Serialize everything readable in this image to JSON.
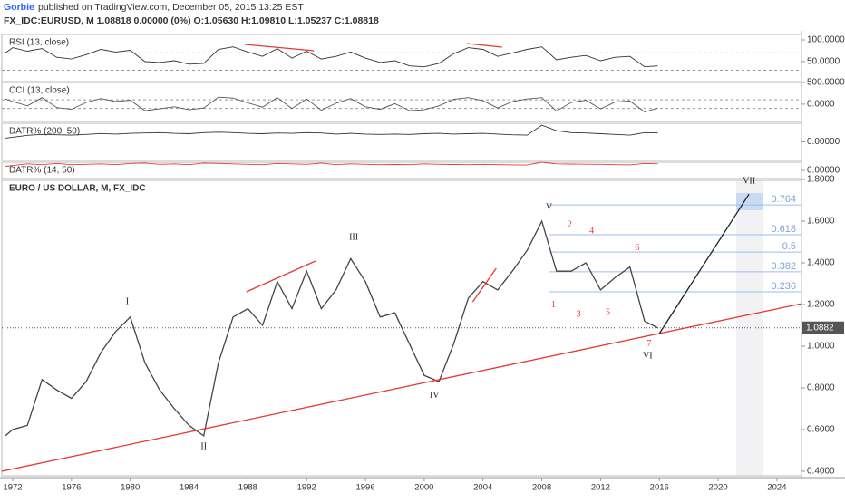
{
  "header": {
    "author": "Gorbie",
    "published": "published on TradingView.com, December 05, 2015 13:25 EST",
    "symbol_line": "FX_IDC:EURUSD, M 1.08818 0.00000 (0%) O:1.05630 H:1.09810 L:1.05237 C:1.08818"
  },
  "chart_data": [
    {
      "type": "line",
      "title": "RSI (13, close)",
      "color": "#333333",
      "x": [
        1971.5,
        1972,
        1973,
        1974,
        1975,
        1976,
        1977,
        1978,
        1979,
        1980,
        1981,
        1982,
        1983,
        1984,
        1985,
        1986,
        1987,
        1988,
        1989,
        1990,
        1991,
        1992,
        1993,
        1994,
        1995,
        1996,
        1997,
        1998,
        1999,
        2000,
        2001,
        2002,
        2003,
        2004,
        2005,
        2006,
        2007,
        2008,
        2009,
        2010,
        2011,
        2012,
        2013,
        2014,
        2015,
        2015.9
      ],
      "values": [
        70,
        82,
        74,
        80,
        60,
        56,
        66,
        78,
        72,
        76,
        50,
        48,
        52,
        44,
        46,
        78,
        84,
        72,
        62,
        80,
        58,
        74,
        56,
        62,
        72,
        58,
        48,
        52,
        40,
        38,
        46,
        68,
        82,
        78,
        62,
        70,
        78,
        84,
        54,
        60,
        64,
        52,
        60,
        62,
        38,
        40
      ],
      "xlim": [
        1971.26,
        2025.67
      ],
      "ylim": [
        4,
        112.5
      ],
      "yticks": [
        {
          "value": 100,
          "label": "100.0000"
        },
        {
          "value": 50,
          "label": "50.0000"
        }
      ],
      "guide_lines": [
        70,
        30
      ],
      "trend_lines": [
        {
          "color": "#e53935",
          "x": [
            1987.8,
            1992.5
          ],
          "y": [
            89.6,
            75
          ]
        },
        {
          "color": "#e53935",
          "x": [
            2002.9,
            2005.3
          ],
          "y": [
            91.7,
            83.3
          ]
        }
      ]
    },
    {
      "type": "line",
      "title": "CCI (13, close)",
      "color": "#555555",
      "x": [
        1971.5,
        1972,
        1973,
        1974,
        1975,
        1976,
        1977,
        1978,
        1979,
        1980,
        1981,
        1982,
        1983,
        1984,
        1985,
        1986,
        1987,
        1988,
        1989,
        1990,
        1991,
        1992,
        1993,
        1994,
        1995,
        1996,
        1997,
        1998,
        1999,
        2000,
        2001,
        2002,
        2003,
        2004,
        2005,
        2006,
        2007,
        2008,
        2009,
        2010,
        2011,
        2012,
        2013,
        2014,
        2015,
        2015.9
      ],
      "values": [
        120,
        60,
        -40,
        150,
        -80,
        -120,
        40,
        130,
        60,
        90,
        -150,
        -110,
        -60,
        -130,
        -90,
        160,
        140,
        30,
        -70,
        150,
        -100,
        120,
        -140,
        20,
        130,
        -60,
        -120,
        10,
        -150,
        -130,
        -40,
        110,
        150,
        80,
        -90,
        60,
        120,
        150,
        -160,
        40,
        90,
        -110,
        50,
        70,
        -180,
        -90
      ],
      "xlim": [
        1971.26,
        2025.67
      ],
      "ylim": [
        -400,
        500
      ],
      "yticks": [
        {
          "value": 500,
          "label": "500.0000"
        },
        {
          "value": 0,
          "label": "0.0000"
        }
      ],
      "guide_lines": [
        100,
        -100
      ]
    },
    {
      "type": "line",
      "title": "DATR% (200, 50)",
      "color": "#333333",
      "x": [
        1971.5,
        1972,
        1973,
        1974,
        1975,
        1976,
        1977,
        1978,
        1979,
        1980,
        1981,
        1982,
        1983,
        1984,
        1985,
        1986,
        1987,
        1988,
        1989,
        1990,
        1991,
        1992,
        1993,
        1994,
        1995,
        1996,
        1997,
        1998,
        1999,
        2000,
        2001,
        2002,
        2003,
        2004,
        2005,
        2006,
        2007,
        2008,
        2009,
        2010,
        2011,
        2012,
        2013,
        2014,
        2015,
        2015.9
      ],
      "values": [
        0.2,
        0.25,
        0.35,
        0.4,
        0.38,
        0.36,
        0.4,
        0.45,
        0.42,
        0.46,
        0.48,
        0.5,
        0.46,
        0.44,
        0.5,
        0.52,
        0.5,
        0.46,
        0.44,
        0.48,
        0.46,
        0.5,
        0.48,
        0.42,
        0.46,
        0.42,
        0.4,
        0.42,
        0.4,
        0.44,
        0.46,
        0.42,
        0.44,
        0.46,
        0.42,
        0.38,
        0.36,
        0.9,
        0.6,
        0.5,
        0.48,
        0.44,
        0.4,
        0.36,
        0.5,
        0.48
      ],
      "xlim": [
        1971.26,
        2025.67
      ],
      "ylim": [
        -1,
        1
      ],
      "yticks": [
        {
          "value": 0,
          "label": "0.00000"
        }
      ]
    },
    {
      "type": "line",
      "title": "DATR% (14, 50)",
      "color": "#e53935",
      "x": [
        1971.5,
        1972,
        1973,
        1974,
        1975,
        1976,
        1977,
        1978,
        1979,
        1980,
        1981,
        1982,
        1983,
        1984,
        1985,
        1986,
        1987,
        1988,
        1989,
        1990,
        1991,
        1992,
        1993,
        1994,
        1995,
        1996,
        1997,
        1998,
        1999,
        2000,
        2001,
        2002,
        2003,
        2004,
        2005,
        2006,
        2007,
        2008,
        2009,
        2010,
        2011,
        2012,
        2013,
        2014,
        2015,
        2015.9
      ],
      "values": [
        0.5,
        0.6,
        0.8,
        0.7,
        0.85,
        0.7,
        0.75,
        0.8,
        0.7,
        0.85,
        0.9,
        0.75,
        0.8,
        0.7,
        0.9,
        0.85,
        0.8,
        0.75,
        0.7,
        0.85,
        0.8,
        0.75,
        0.9,
        0.7,
        0.8,
        0.75,
        0.7,
        0.72,
        0.7,
        0.8,
        0.75,
        0.72,
        0.7,
        0.74,
        0.7,
        0.68,
        0.66,
        1.0,
        0.8,
        0.78,
        0.76,
        0.74,
        0.7,
        0.68,
        0.85,
        0.8
      ],
      "xlim": [
        1971.26,
        2025.67
      ],
      "ylim": [
        -1,
        1
      ],
      "yticks": [
        {
          "value": 0,
          "label": "0.00000"
        }
      ]
    },
    {
      "type": "line",
      "title": "EURO / US DOLLAR, M, FX_IDC",
      "color": "#444444",
      "x": [
        1971.5,
        1972,
        1973,
        1974,
        1975,
        1976,
        1977,
        1978,
        1979,
        1980,
        1981,
        1982,
        1983,
        1984,
        1985,
        1986,
        1987,
        1988,
        1989,
        1990,
        1991,
        1992,
        1993,
        1994,
        1995,
        1996,
        1997,
        1998,
        1999,
        2000,
        2001,
        2002,
        2003,
        2004,
        2005,
        2006,
        2007,
        2008,
        2009,
        2010,
        2011,
        2012,
        2013,
        2014,
        2015,
        2015.9
      ],
      "values": [
        0.57,
        0.6,
        0.62,
        0.84,
        0.79,
        0.75,
        0.83,
        0.97,
        1.07,
        1.14,
        0.92,
        0.79,
        0.7,
        0.62,
        0.57,
        0.92,
        1.14,
        1.18,
        1.1,
        1.31,
        1.18,
        1.36,
        1.18,
        1.27,
        1.42,
        1.31,
        1.14,
        1.16,
        1.01,
        0.86,
        0.83,
        1.01,
        1.23,
        1.31,
        1.27,
        1.36,
        1.46,
        1.6,
        1.36,
        1.36,
        1.4,
        1.27,
        1.33,
        1.38,
        1.12,
        1.088
      ],
      "xlim": [
        1971.26,
        2025.67
      ],
      "ylim": [
        0.378,
        1.796
      ],
      "xticks": [
        1972,
        1976,
        1980,
        1984,
        1988,
        1992,
        1996,
        2000,
        2004,
        2008,
        2012,
        2016,
        2020,
        2024
      ],
      "yticks": [
        {
          "value": 1.8,
          "label": "1.8000"
        },
        {
          "value": 1.6,
          "label": "1.6000"
        },
        {
          "value": 1.4,
          "label": "1.4000"
        },
        {
          "value": 1.2,
          "label": "1.2000"
        },
        {
          "value": 1.0,
          "label": "1.0000"
        },
        {
          "value": 0.8,
          "label": "0.8000"
        },
        {
          "value": 0.6,
          "label": "0.6000"
        },
        {
          "value": 0.4,
          "label": "0.4000"
        }
      ],
      "last_price": 1.0882,
      "fib_levels": [
        {
          "ratio": 0.236,
          "price": 1.261
        },
        {
          "ratio": 0.382,
          "price": 1.357
        },
        {
          "ratio": 0.5,
          "price": 1.452
        },
        {
          "ratio": 0.618,
          "price": 1.535
        },
        {
          "ratio": 0.764,
          "price": 1.678
        }
      ],
      "trend_lines": [
        {
          "color": "#e53935",
          "x": [
            1971.26,
            2025.67
          ],
          "y": [
            0.4,
            1.204
          ]
        },
        {
          "color": "#e53935",
          "x": [
            1987.9,
            1992.6
          ],
          "y": [
            1.261,
            1.409
          ]
        },
        {
          "color": "#e53935",
          "x": [
            2003.3,
            2004.9
          ],
          "y": [
            1.213,
            1.374
          ]
        },
        {
          "color": "#222222",
          "x": [
            2016.0,
            2022.1
          ],
          "y": [
            1.061,
            1.73
          ]
        }
      ],
      "annotations": [
        {
          "text": "I",
          "x": 1979.8,
          "y": 1.213,
          "color": "#222222"
        },
        {
          "text": "II",
          "x": 1985.0,
          "y": 0.517,
          "color": "#222222"
        },
        {
          "text": "III",
          "x": 1995.2,
          "y": 1.522,
          "color": "#222222"
        },
        {
          "text": "IV",
          "x": 2000.7,
          "y": 0.761,
          "color": "#222222"
        },
        {
          "text": "V",
          "x": 2008.5,
          "y": 1.665,
          "color": "#222222"
        },
        {
          "text": "VI",
          "x": 2015.2,
          "y": 0.952,
          "color": "#222222"
        },
        {
          "text": "VII",
          "x": 2022.1,
          "y": 1.791,
          "color": "#222222"
        },
        {
          "text": "1",
          "x": 2008.8,
          "y": 1.196,
          "color": "#e53935"
        },
        {
          "text": "2",
          "x": 2009.9,
          "y": 1.583,
          "color": "#e53935"
        },
        {
          "text": "3",
          "x": 2010.5,
          "y": 1.152,
          "color": "#e53935"
        },
        {
          "text": "4",
          "x": 2011.4,
          "y": 1.552,
          "color": "#e53935"
        },
        {
          "text": "5",
          "x": 2012.5,
          "y": 1.161,
          "color": "#e53935"
        },
        {
          "text": "6",
          "x": 2014.5,
          "y": 1.47,
          "color": "#e53935"
        },
        {
          "text": "7",
          "x": 2015.3,
          "y": 1.009,
          "color": "#e53935"
        }
      ]
    }
  ]
}
